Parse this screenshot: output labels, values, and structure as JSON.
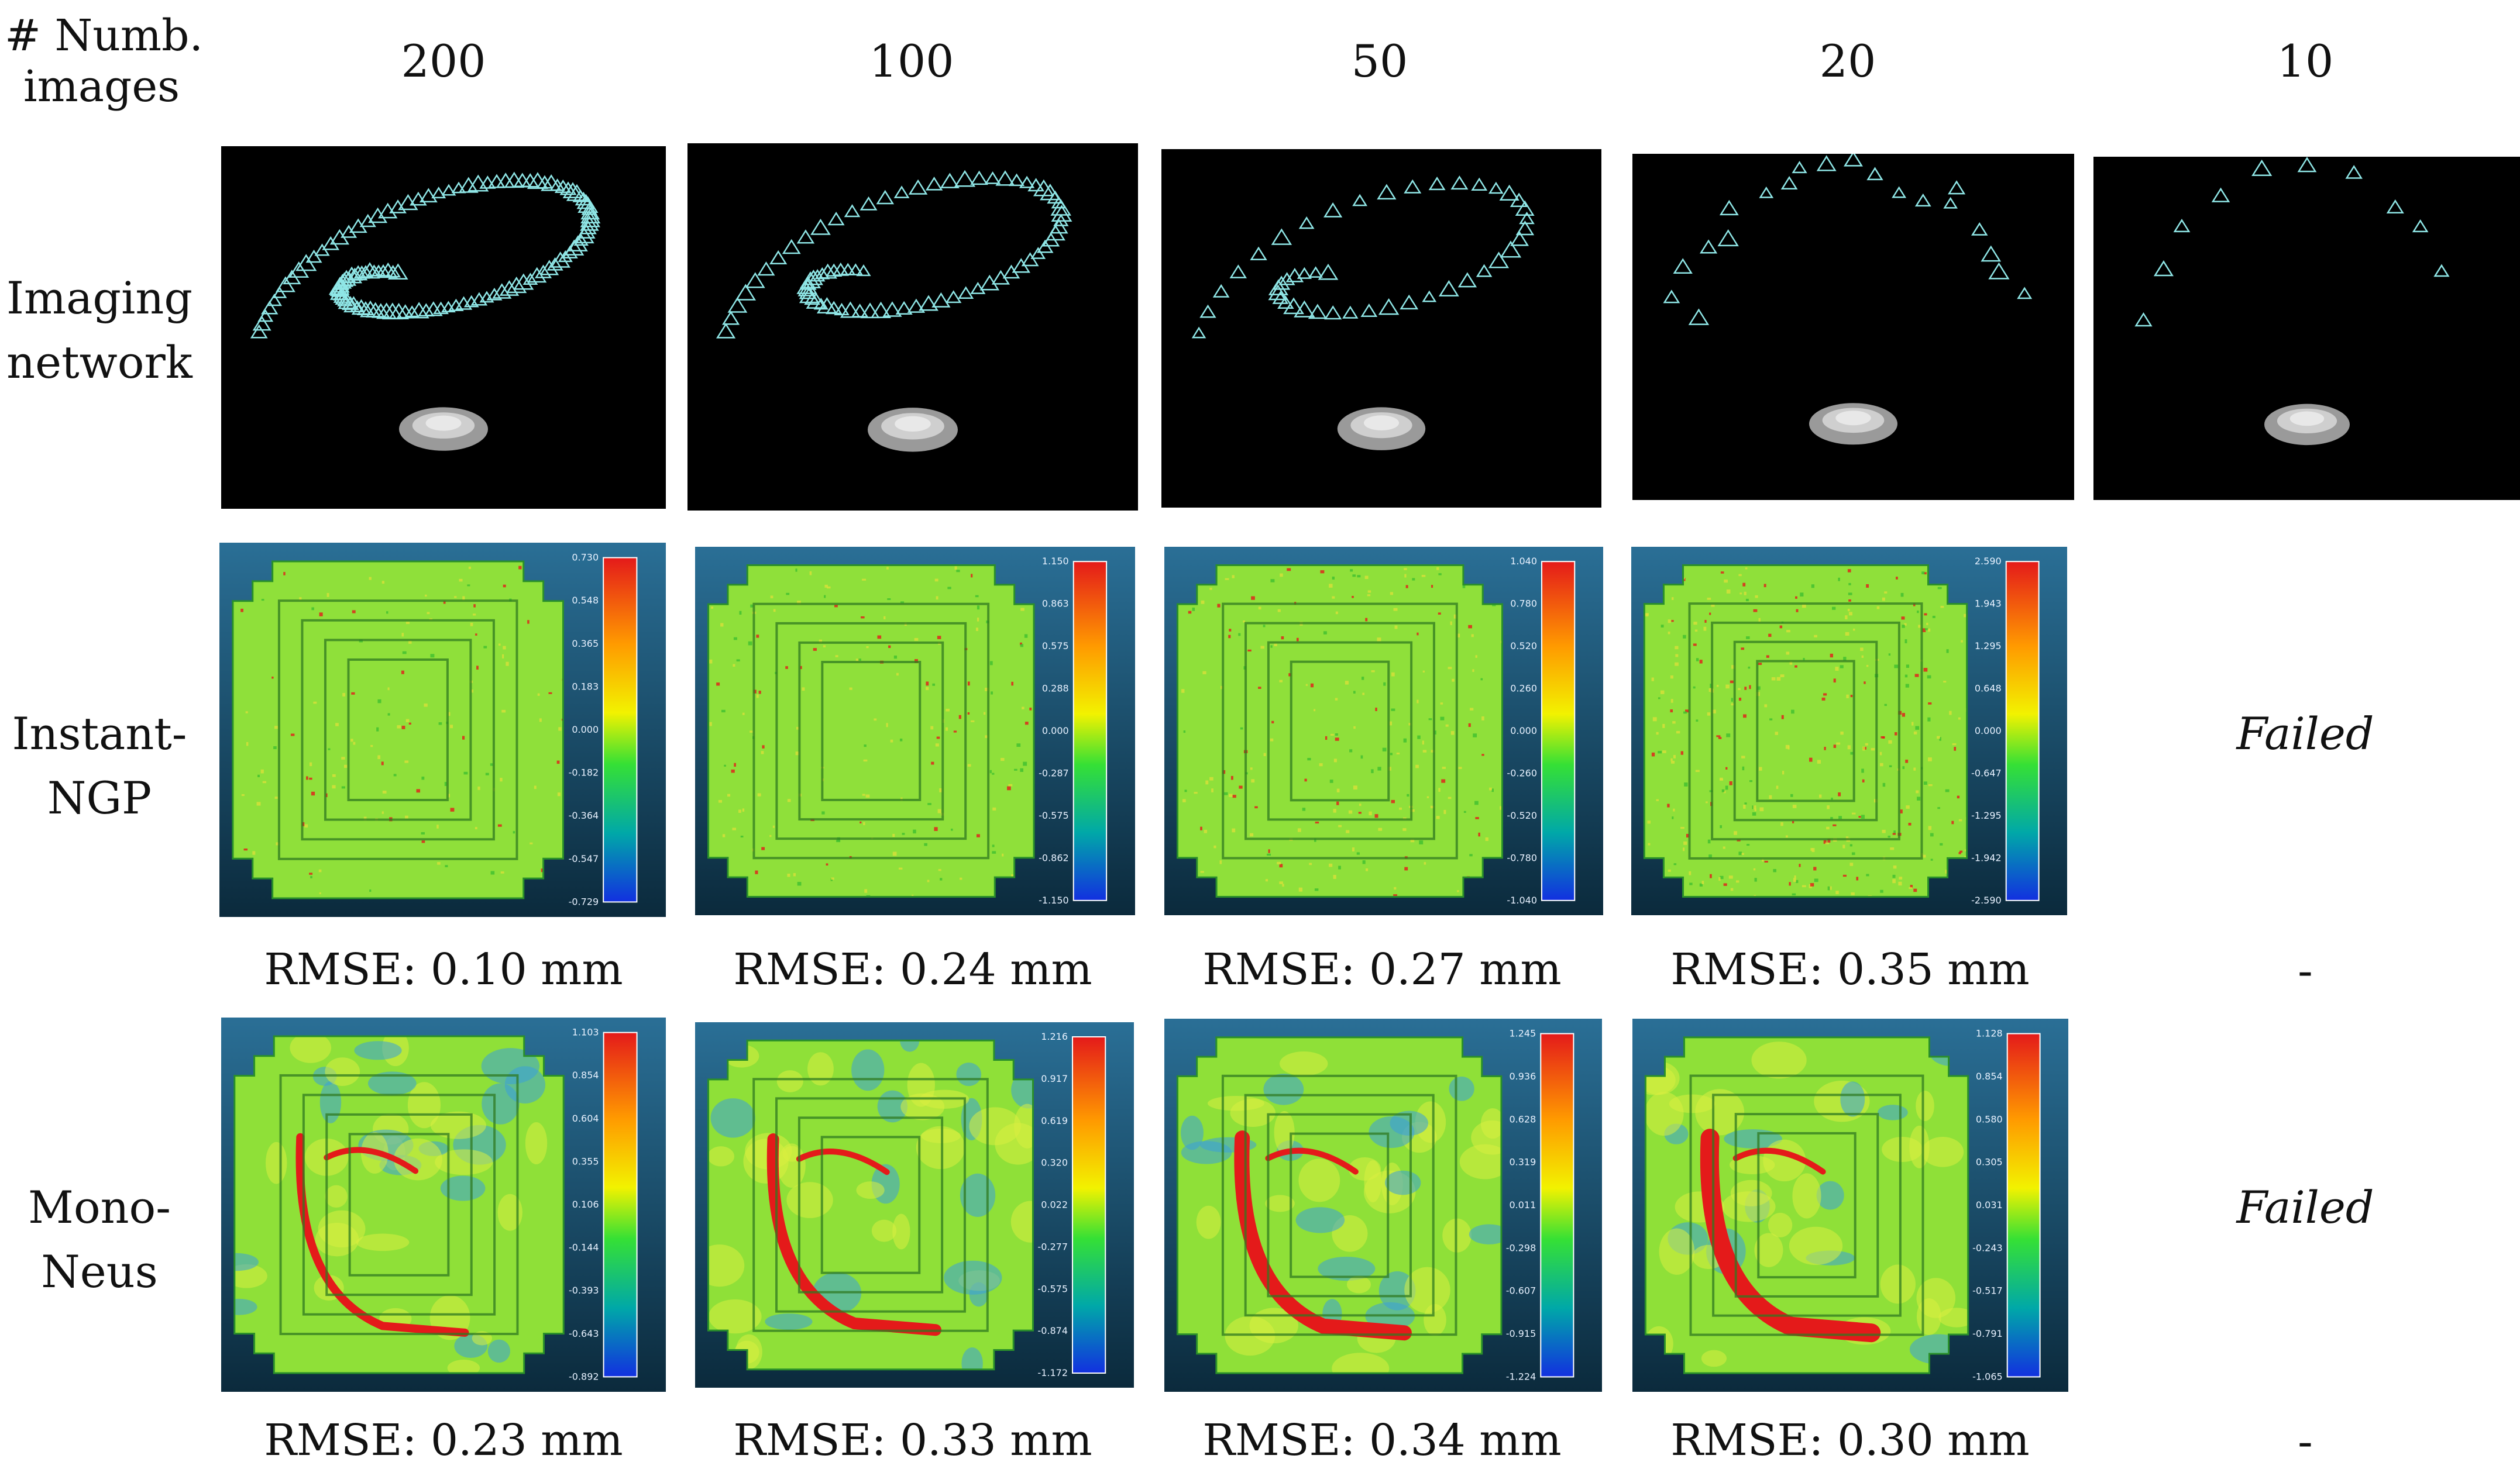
{
  "figure": {
    "corner_label_line1": "# Numb.",
    "corner_label_line2": "images",
    "columns": [
      "200",
      "100",
      "50",
      "20",
      "10"
    ],
    "row_labels": {
      "imaging": [
        "Imaging",
        "network"
      ],
      "instant": [
        "Instant-",
        "NGP"
      ],
      "mono": [
        "Mono-",
        "Neus"
      ]
    },
    "instant_ngp": {
      "rmse": [
        "RMSE: 0.10 mm",
        "RMSE: 0.24 mm",
        "RMSE: 0.27 mm",
        "RMSE: 0.35 mm",
        "-"
      ],
      "failed": "Failed",
      "scales": [
        [
          "0.730",
          "0.548",
          "0.365",
          "0.183",
          "0.000",
          "-0.182",
          "-0.364",
          "-0.547",
          "-0.729"
        ],
        [
          "1.150",
          "0.863",
          "0.575",
          "0.288",
          "0.000",
          "-0.287",
          "-0.575",
          "-0.862",
          "-1.150"
        ],
        [
          "1.040",
          "0.780",
          "0.520",
          "0.260",
          "0.000",
          "-0.260",
          "-0.520",
          "-0.780",
          "-1.040"
        ],
        [
          "2.590",
          "1.943",
          "1.295",
          "0.648",
          "0.000",
          "-0.647",
          "-1.295",
          "-1.942",
          "-2.590"
        ]
      ]
    },
    "mono_neus": {
      "rmse": [
        "RMSE: 0.23 mm",
        "RMSE: 0.33 mm",
        "RMSE: 0.34 mm",
        "RMSE: 0.30 mm",
        "-"
      ],
      "failed": "Failed",
      "scales": [
        [
          "1.103",
          "0.854",
          "0.604",
          "0.355",
          "0.106",
          "-0.144",
          "-0.393",
          "-0.643",
          "-0.892"
        ],
        [
          "1.216",
          "0.917",
          "0.619",
          "0.320",
          "0.022",
          "-0.277",
          "-0.575",
          "-0.874",
          "-1.172"
        ],
        [
          "1.245",
          "0.936",
          "0.628",
          "0.319",
          "0.011",
          "-0.298",
          "-0.607",
          "-0.915",
          "-1.224"
        ],
        [
          "1.128",
          "0.854",
          "0.580",
          "0.305",
          "0.031",
          "-0.243",
          "-0.517",
          "-0.791",
          "-1.065"
        ]
      ]
    },
    "colors": {
      "panel_black": "#000000",
      "camera_cyan": "#8fe6e6",
      "dem_top": "#2a6f96",
      "dem_bottom": "#0b2a3c",
      "field_green": "#8fe03a",
      "hot_red": "#e41a1a"
    }
  }
}
